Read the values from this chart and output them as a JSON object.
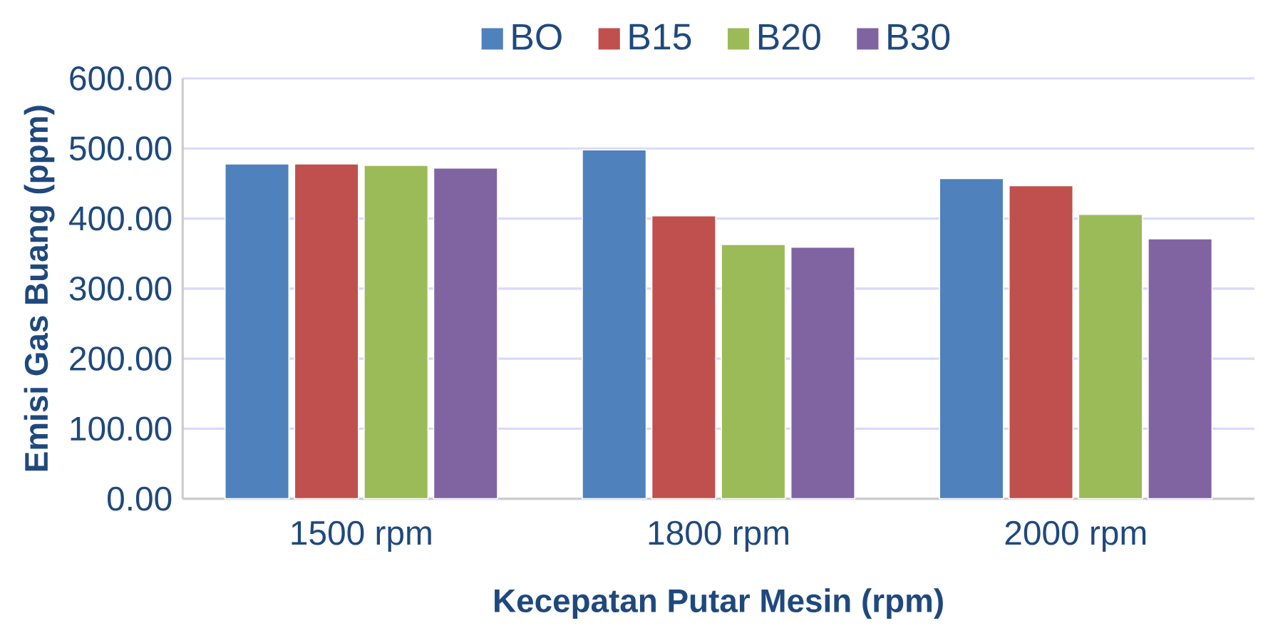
{
  "chart_data": {
    "type": "bar",
    "xlabel": "Kecepatan Putar Mesin (rpm)",
    "ylabel": "Emisi Gas Buang (ppm)",
    "categories": [
      "1500 rpm",
      "1800 rpm",
      "2000 rpm"
    ],
    "series": [
      {
        "name": "BO",
        "color": "#4f81bd",
        "values": [
          478,
          498,
          457
        ]
      },
      {
        "name": "B15",
        "color": "#c0504d",
        "values": [
          478,
          404,
          447
        ]
      },
      {
        "name": "B20",
        "color": "#9bbb59",
        "values": [
          476,
          363,
          406
        ]
      },
      {
        "name": "B30",
        "color": "#8064a2",
        "values": [
          472,
          359,
          371
        ]
      }
    ],
    "ylim": [
      0,
      600
    ],
    "yticks": [
      {
        "value": 0,
        "label": "0.00"
      },
      {
        "value": 100,
        "label": "100.00"
      },
      {
        "value": 200,
        "label": "200.00"
      },
      {
        "value": 300,
        "label": "300.00"
      },
      {
        "value": 400,
        "label": "400.00"
      },
      {
        "value": 500,
        "label": "500.00"
      },
      {
        "value": 600,
        "label": "600.00"
      }
    ],
    "grid": "y",
    "legend": "top"
  }
}
